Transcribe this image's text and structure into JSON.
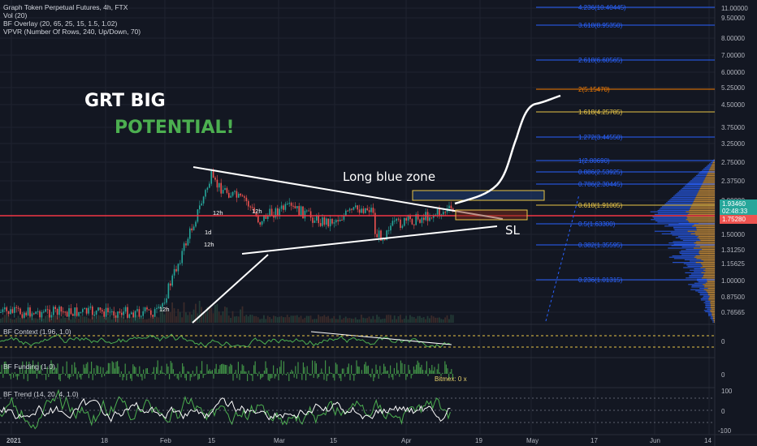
{
  "legend": {
    "title": "Graph Token Perpetual Futures, 4h, FTX",
    "vol": "Vol (20)",
    "bf_overlay": "BF Overlay (20, 65, 25, 15, 1.5, 1.02)",
    "vpvr": "VPVR (Number Of Rows, 240, Up/Down, 70)"
  },
  "annotations": {
    "headline_1": "GRT BIG",
    "headline_2": "POTENTIAL!",
    "blue_zone": "Long blue zone",
    "sl": "SL",
    "marker_1d": "1d",
    "marker_12h_a": "12h",
    "marker_12h_b": "12h",
    "marker_12h_c": "12h",
    "marker_12h_d": "12h"
  },
  "price_tags": {
    "current": "1.93460",
    "countdown": "02:48:33",
    "red": "1.75280"
  },
  "panels": {
    "context": {
      "label": "BF Context (1.96, 1.0)",
      "axis": [
        "0"
      ]
    },
    "funding": {
      "label": "BF Funding (1.0)",
      "axis": [
        "0"
      ],
      "bitmex": "Bitmex: 0 x"
    },
    "trend": {
      "label": "BF Trend (14, 20, 4, 1.0)",
      "axis": [
        "100",
        "0",
        "-100"
      ]
    }
  },
  "colors": {
    "background": "#131722",
    "fib": "#2962ff",
    "fib_gold": "#e8c547",
    "fib_orange": "#f57c00",
    "red_line": "#f23645",
    "green": "#26a69a",
    "white": "#ffffff"
  },
  "chart_data": {
    "type": "line",
    "price_axis": [
      "11.00000",
      "9.50000",
      "8.00000",
      "7.00000",
      "6.00000",
      "5.25000",
      "4.50000",
      "3.75000",
      "3.25000",
      "2.75000",
      "2.37500",
      "2.00000",
      "1.50000",
      "1.31250",
      "1.15625",
      "1.00000",
      "0.87500",
      "0.76565"
    ],
    "time_axis": [
      "2021",
      "18",
      "Feb",
      "15",
      "Mar",
      "15",
      "Apr",
      "19",
      "May",
      "17",
      "Jun",
      "14"
    ],
    "fib_levels": [
      {
        "label": "4.236(10.40445)"
      },
      {
        "label": "3.618(8.95350)"
      },
      {
        "label": "2.618(6.60565)"
      },
      {
        "label": "2(5.15470)"
      },
      {
        "label": "1.618(4.25785)"
      },
      {
        "label": "1.272(3.44550)"
      },
      {
        "label": "1(2.80690)"
      },
      {
        "label": "0.886(2.53925)"
      },
      {
        "label": "0.786(2.30445)"
      },
      {
        "label": "0.618(1.91005)"
      },
      {
        "label": "0.5(1.63300)"
      },
      {
        "label": "0.382(1.35595)"
      },
      {
        "label": "0.236(1.01315)"
      }
    ]
  }
}
